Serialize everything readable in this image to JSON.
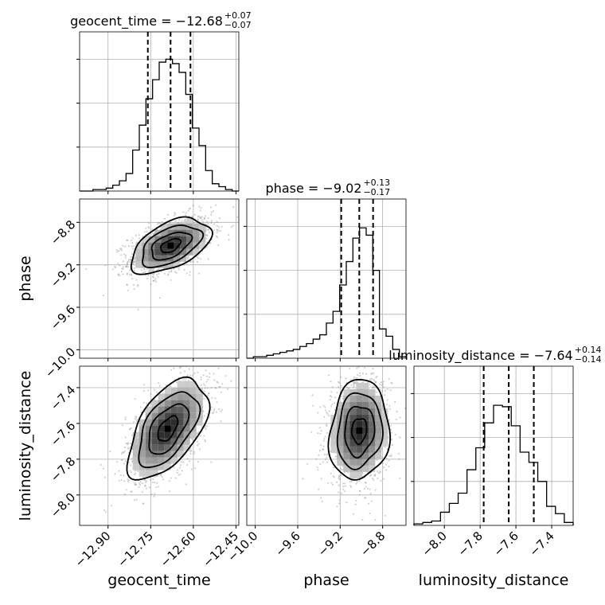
{
  "chart_data": {
    "type": "corner",
    "parameters": [
      {
        "name": "geocent_time",
        "axis_label": "geocent_time",
        "title": {
          "prefix": "geocent_time = ",
          "value": "−12.68",
          "plus": "+0.07",
          "minus": "−0.07"
        },
        "range": [
          -13.0,
          -12.44
        ],
        "ticks": [
          -12.9,
          -12.75,
          -12.6,
          -12.45
        ],
        "tick_labels": [
          "−12.90",
          "−12.75",
          "−12.60",
          "−12.45"
        ],
        "quantiles": [
          -12.76,
          -12.68,
          -12.61
        ],
        "hist": [
          0,
          0,
          0.01,
          0.01,
          0.02,
          0.04,
          0.07,
          0.12,
          0.28,
          0.45,
          0.63,
          0.76,
          0.88,
          0.9,
          0.87,
          0.81,
          0.66,
          0.43,
          0.31,
          0.14,
          0.05,
          0.03,
          0.01,
          0
        ]
      },
      {
        "name": "phase",
        "axis_label": "phase",
        "title": {
          "prefix": "phase = ",
          "value": "−9.02",
          "plus": "+0.13",
          "minus": "−0.17"
        },
        "range": [
          -10.08,
          -8.58
        ],
        "ticks": [
          -10.0,
          -9.6,
          -9.2,
          -8.8
        ],
        "tick_labels": [
          "−10.0",
          "−9.6",
          "−9.2",
          "−8.8"
        ],
        "quantiles": [
          -9.19,
          -9.02,
          -8.89
        ],
        "hist": [
          0,
          0.01,
          0.01,
          0.02,
          0.03,
          0.04,
          0.05,
          0.06,
          0.08,
          0.1,
          0.13,
          0.16,
          0.24,
          0.32,
          0.5,
          0.66,
          0.82,
          0.89,
          0.84,
          0.6,
          0.2,
          0.15,
          0.06,
          0.01
        ]
      },
      {
        "name": "luminosity_distance",
        "axis_label": "luminosity_distance",
        "title": {
          "prefix": "luminosity_distance = ",
          "value": "−7.64",
          "plus": "+0.14",
          "minus": "−0.14"
        },
        "range": [
          -8.17,
          -7.28
        ],
        "ticks": [
          -8.0,
          -7.8,
          -7.6,
          -7.4
        ],
        "tick_labels": [
          "−8.0",
          "−7.8",
          "−7.6",
          "−7.4"
        ],
        "quantiles": [
          -7.78,
          -7.64,
          -7.5
        ],
        "hist": [
          0.01,
          0.02,
          0.03,
          0.09,
          0.15,
          0.22,
          0.38,
          0.53,
          0.7,
          0.82,
          0.81,
          0.68,
          0.5,
          0.43,
          0.3,
          0.13,
          0.08,
          0.02
        ]
      }
    ],
    "hist_yticks": [
      0.3,
      0.6,
      0.9
    ],
    "pairs": [
      {
        "x": "geocent_time",
        "y": "phase",
        "center": [
          -12.68,
          -9.02
        ],
        "sigma": [
          0.07,
          0.13
        ],
        "rho": 0.5
      },
      {
        "x": "geocent_time",
        "y": "luminosity_distance",
        "center": [
          -12.69,
          -7.63
        ],
        "sigma": [
          0.07,
          0.14
        ],
        "rho": 0.55
      },
      {
        "x": "phase",
        "y": "luminosity_distance",
        "center": [
          -9.02,
          -7.64
        ],
        "sigma": [
          0.14,
          0.14
        ],
        "rho": 0.1
      }
    ],
    "grid": true
  }
}
